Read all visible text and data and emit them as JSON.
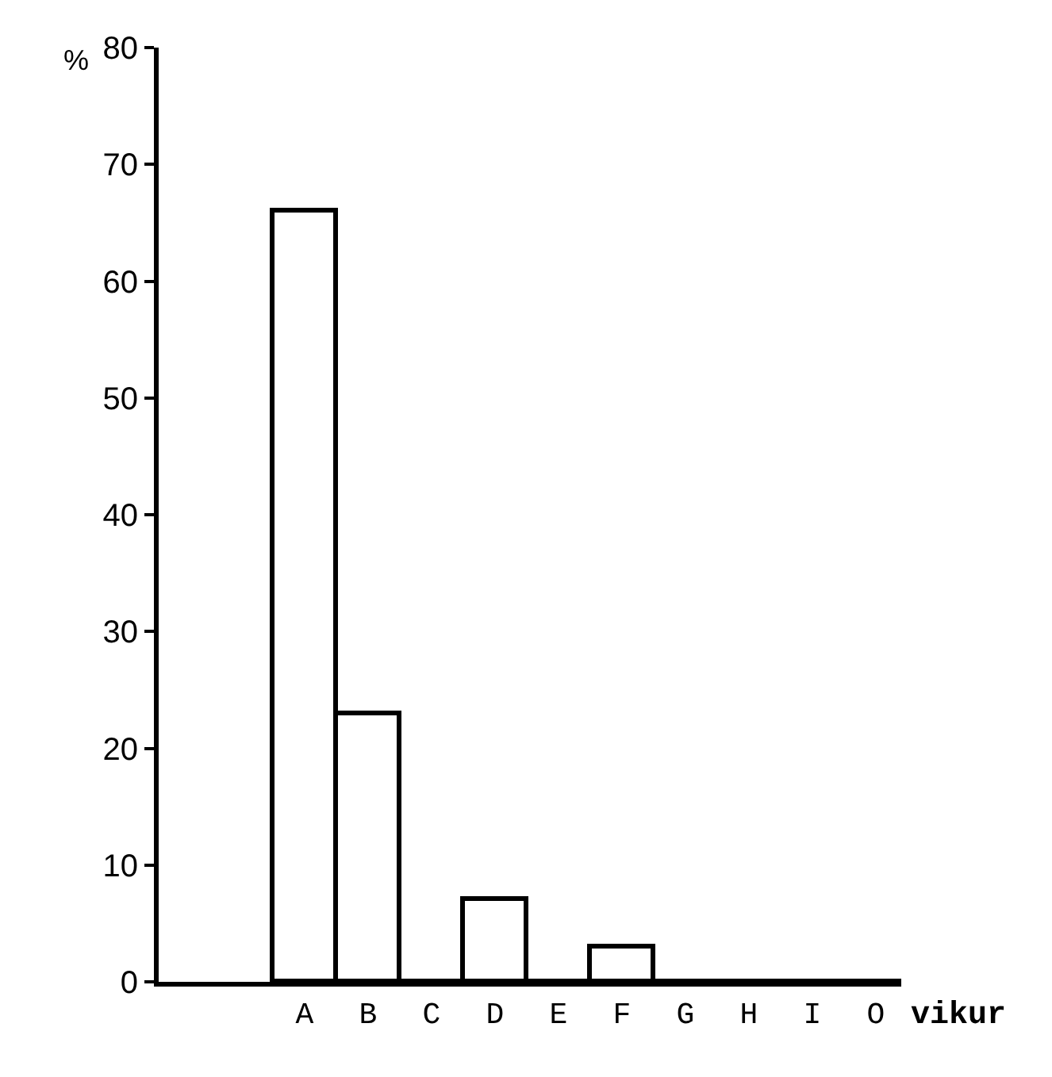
{
  "chart_data": {
    "type": "bar",
    "ylabel": "%",
    "xlabel": "vikur",
    "categories": [
      "A",
      "B",
      "C",
      "D",
      "E",
      "F",
      "G",
      "H",
      "I",
      "O"
    ],
    "values": [
      66,
      23,
      0,
      7,
      0,
      3,
      0,
      0,
      0,
      0
    ],
    "color": "#ffffff",
    "ylim": [
      0,
      80
    ],
    "yticks": [
      0,
      10,
      20,
      30,
      40,
      50,
      60,
      70,
      80
    ]
  }
}
